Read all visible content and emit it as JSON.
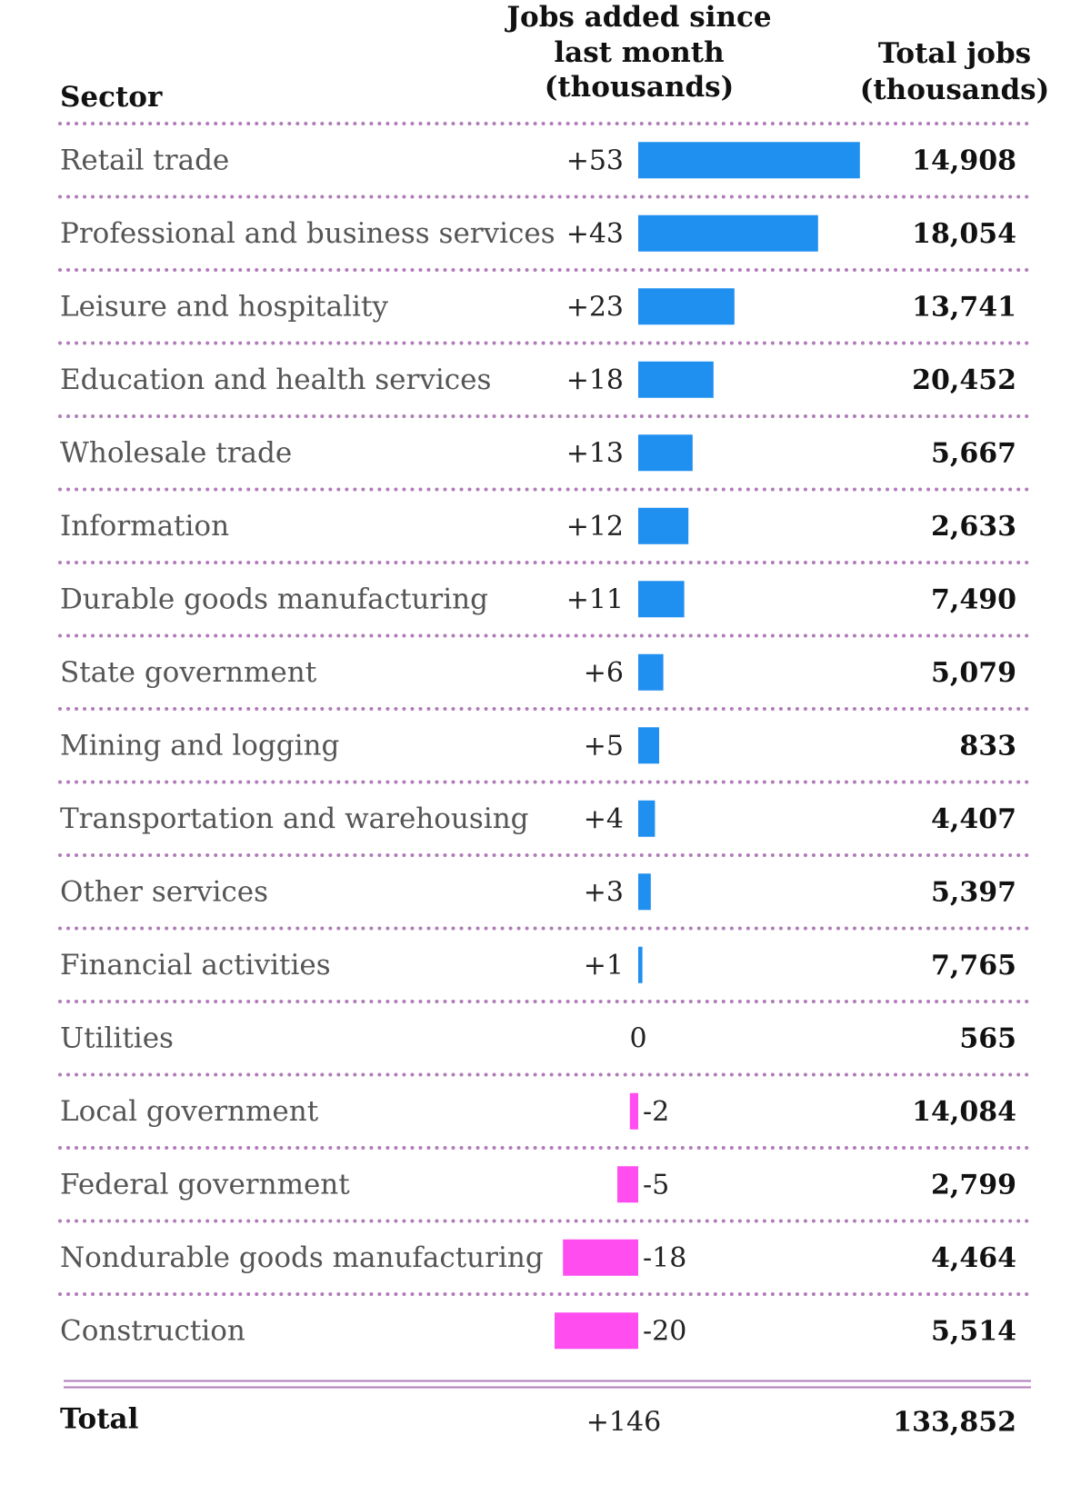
{
  "headers": {
    "sector": "Sector",
    "jobs_added": [
      "Jobs added since",
      "last month",
      "(thousands)"
    ],
    "total_jobs": [
      "Total jobs",
      "(thousands)"
    ]
  },
  "colors": {
    "positive": "#1f8ff0",
    "negative": "#ff4df0",
    "separator": "#b07cb8",
    "total_rule": "#b07cb8"
  },
  "chart_data": {
    "type": "bar",
    "orientation": "horizontal",
    "categories": [
      "Retail trade",
      "Professional and business services",
      "Leisure and hospitality",
      "Education and health services",
      "Wholesale trade",
      "Information",
      "Durable goods manufacturing",
      "State government",
      "Mining and logging",
      "Transportation and warehousing",
      "Other services",
      "Financial activities",
      "Utilities",
      "Local government",
      "Federal government",
      "Nondurable goods manufacturing",
      "Construction"
    ],
    "values": [
      53,
      43,
      23,
      18,
      13,
      12,
      11,
      6,
      5,
      4,
      3,
      1,
      0,
      -2,
      -5,
      -18,
      -20
    ],
    "value_labels": [
      "+53",
      "+43",
      "+23",
      "+18",
      "+13",
      "+12",
      "+11",
      "+6",
      "+5",
      "+4",
      "+3",
      "+1",
      "0",
      "-2",
      "-5",
      "-18",
      "-20"
    ],
    "total_jobs": [
      "14,908",
      "18,054",
      "13,741",
      "20,452",
      "5,667",
      "2,633",
      "7,490",
      "5,079",
      "833",
      "4,407",
      "5,397",
      "7,765",
      "565",
      "14,084",
      "2,799",
      "4,464",
      "5,514"
    ],
    "total": {
      "label": "Total",
      "jobs_added": "+146",
      "total_jobs": "133,852"
    }
  }
}
